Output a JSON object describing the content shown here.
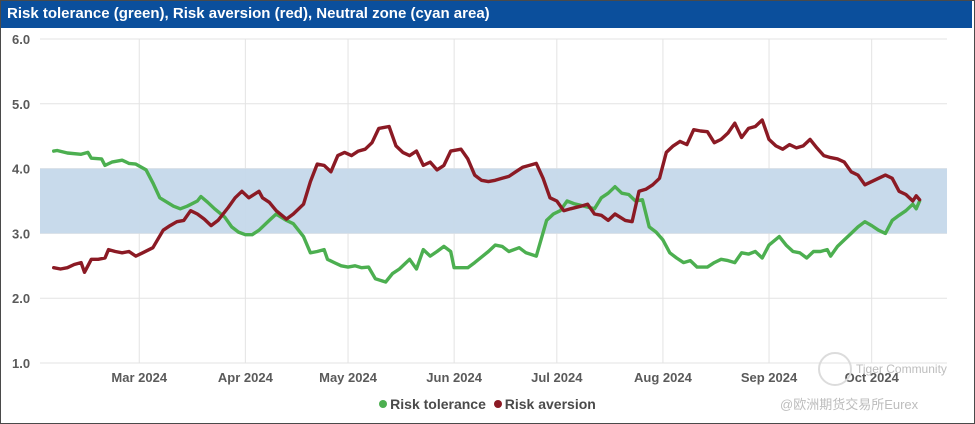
{
  "title": "Risk tolerance (green), Risk aversion (red), Neutral zone (cyan area)",
  "colors": {
    "title_bar": "#0b4f9c",
    "risk_tolerance": "#4caf50",
    "risk_aversion": "#8b1a24",
    "neutral_zone": "#c5d8ea",
    "grid": "#e3e3e3"
  },
  "legend": {
    "tolerance_label": "Risk tolerance",
    "aversion_label": "Risk aversion"
  },
  "watermark": {
    "line1": "Tiger Community",
    "line2": "@欧洲期货交易所Eurex"
  },
  "chart_data": {
    "type": "line",
    "title": "Risk tolerance (green), Risk aversion (red), Neutral zone (cyan area)",
    "xlabel": "",
    "ylabel": "",
    "ylim": [
      1.0,
      6.0
    ],
    "y_ticks": [
      "1.0",
      "2.0",
      "3.0",
      "4.0",
      "5.0",
      "6.0"
    ],
    "x_range": [
      0,
      265
    ],
    "x_ticks": [
      {
        "label": "Mar 2024",
        "x": 29
      },
      {
        "label": "Apr 2024",
        "x": 60
      },
      {
        "label": "May 2024",
        "x": 90
      },
      {
        "label": "Jun 2024",
        "x": 121
      },
      {
        "label": "Jul 2024",
        "x": 151
      },
      {
        "label": "Aug 2024",
        "x": 182
      },
      {
        "label": "Sep 2024",
        "x": 213
      },
      {
        "label": "Oct 2024",
        "x": 243
      }
    ],
    "grid": true,
    "legend_position": "bottom-center",
    "neutral_zone": [
      3.0,
      4.0
    ],
    "series": [
      {
        "name": "Risk tolerance",
        "points": [
          [
            4,
            4.27
          ],
          [
            5,
            4.28
          ],
          [
            8,
            4.24
          ],
          [
            12,
            4.22
          ],
          [
            14,
            4.25
          ],
          [
            15,
            4.16
          ],
          [
            18,
            4.15
          ],
          [
            19,
            4.05
          ],
          [
            21,
            4.1
          ],
          [
            24,
            4.13
          ],
          [
            26,
            4.08
          ],
          [
            28,
            4.07
          ],
          [
            31,
            3.98
          ],
          [
            33,
            3.78
          ],
          [
            35,
            3.55
          ],
          [
            39,
            3.42
          ],
          [
            41,
            3.38
          ],
          [
            43,
            3.42
          ],
          [
            46,
            3.5
          ],
          [
            47,
            3.57
          ],
          [
            49,
            3.48
          ],
          [
            51,
            3.38
          ],
          [
            54,
            3.25
          ],
          [
            56,
            3.1
          ],
          [
            58,
            3.02
          ],
          [
            60,
            2.98
          ],
          [
            62,
            2.98
          ],
          [
            64,
            3.05
          ],
          [
            67,
            3.2
          ],
          [
            69,
            3.3
          ],
          [
            72,
            3.2
          ],
          [
            74,
            3.15
          ],
          [
            77,
            2.95
          ],
          [
            79,
            2.7
          ],
          [
            81,
            2.72
          ],
          [
            83,
            2.75
          ],
          [
            84,
            2.6
          ],
          [
            86,
            2.55
          ],
          [
            88,
            2.5
          ],
          [
            90,
            2.48
          ],
          [
            92,
            2.5
          ],
          [
            94,
            2.47
          ],
          [
            96,
            2.48
          ],
          [
            98,
            2.3
          ],
          [
            101,
            2.25
          ],
          [
            103,
            2.38
          ],
          [
            105,
            2.45
          ],
          [
            108,
            2.6
          ],
          [
            110,
            2.45
          ],
          [
            112,
            2.75
          ],
          [
            114,
            2.65
          ],
          [
            116,
            2.72
          ],
          [
            118,
            2.8
          ],
          [
            120,
            2.72
          ],
          [
            121,
            2.47
          ],
          [
            125,
            2.47
          ],
          [
            127,
            2.55
          ],
          [
            131,
            2.72
          ],
          [
            133,
            2.82
          ],
          [
            135,
            2.8
          ],
          [
            137,
            2.72
          ],
          [
            140,
            2.78
          ],
          [
            142,
            2.7
          ],
          [
            145,
            2.65
          ],
          [
            148,
            3.2
          ],
          [
            150,
            3.3
          ],
          [
            152,
            3.35
          ],
          [
            154,
            3.5
          ],
          [
            156,
            3.46
          ],
          [
            159,
            3.42
          ],
          [
            162,
            3.38
          ],
          [
            164,
            3.55
          ],
          [
            166,
            3.62
          ],
          [
            168,
            3.72
          ],
          [
            170,
            3.62
          ],
          [
            172,
            3.6
          ],
          [
            174,
            3.5
          ],
          [
            176,
            3.52
          ],
          [
            178,
            3.1
          ],
          [
            180,
            3.02
          ],
          [
            182,
            2.9
          ],
          [
            184,
            2.7
          ],
          [
            186,
            2.62
          ],
          [
            188,
            2.55
          ],
          [
            190,
            2.58
          ],
          [
            192,
            2.48
          ],
          [
            195,
            2.48
          ],
          [
            197,
            2.55
          ],
          [
            199,
            2.6
          ],
          [
            201,
            2.58
          ],
          [
            203,
            2.55
          ],
          [
            205,
            2.7
          ],
          [
            207,
            2.68
          ],
          [
            209,
            2.72
          ],
          [
            211,
            2.62
          ],
          [
            213,
            2.82
          ],
          [
            216,
            2.95
          ],
          [
            218,
            2.82
          ],
          [
            220,
            2.72
          ],
          [
            222,
            2.7
          ],
          [
            224,
            2.62
          ],
          [
            226,
            2.72
          ],
          [
            228,
            2.72
          ],
          [
            230,
            2.75
          ],
          [
            231,
            2.65
          ],
          [
            233,
            2.8
          ],
          [
            235,
            2.9
          ],
          [
            237,
            3.0
          ],
          [
            239,
            3.1
          ],
          [
            241,
            3.18
          ],
          [
            243,
            3.12
          ],
          [
            245,
            3.05
          ],
          [
            247,
            3.0
          ],
          [
            249,
            3.2
          ],
          [
            251,
            3.28
          ],
          [
            253,
            3.35
          ],
          [
            255,
            3.45
          ],
          [
            256,
            3.38
          ],
          [
            257,
            3.5
          ]
        ]
      },
      {
        "name": "Risk aversion",
        "points": [
          [
            4,
            2.47
          ],
          [
            6,
            2.45
          ],
          [
            8,
            2.47
          ],
          [
            10,
            2.52
          ],
          [
            12,
            2.55
          ],
          [
            13,
            2.4
          ],
          [
            15,
            2.6
          ],
          [
            17,
            2.6
          ],
          [
            19,
            2.62
          ],
          [
            20,
            2.75
          ],
          [
            22,
            2.72
          ],
          [
            24,
            2.7
          ],
          [
            26,
            2.72
          ],
          [
            28,
            2.65
          ],
          [
            30,
            2.7
          ],
          [
            33,
            2.78
          ],
          [
            36,
            3.05
          ],
          [
            38,
            3.12
          ],
          [
            40,
            3.18
          ],
          [
            42,
            3.2
          ],
          [
            44,
            3.35
          ],
          [
            46,
            3.3
          ],
          [
            48,
            3.22
          ],
          [
            50,
            3.12
          ],
          [
            52,
            3.2
          ],
          [
            55,
            3.4
          ],
          [
            57,
            3.55
          ],
          [
            59,
            3.65
          ],
          [
            61,
            3.55
          ],
          [
            64,
            3.65
          ],
          [
            65,
            3.55
          ],
          [
            67,
            3.48
          ],
          [
            69,
            3.35
          ],
          [
            72,
            3.22
          ],
          [
            74,
            3.3
          ],
          [
            77,
            3.45
          ],
          [
            79,
            3.8
          ],
          [
            81,
            4.07
          ],
          [
            83,
            4.05
          ],
          [
            85,
            3.95
          ],
          [
            87,
            4.2
          ],
          [
            89,
            4.25
          ],
          [
            91,
            4.2
          ],
          [
            93,
            4.27
          ],
          [
            95,
            4.3
          ],
          [
            97,
            4.4
          ],
          [
            99,
            4.62
          ],
          [
            102,
            4.65
          ],
          [
            104,
            4.35
          ],
          [
            106,
            4.25
          ],
          [
            108,
            4.2
          ],
          [
            110,
            4.27
          ],
          [
            112,
            4.05
          ],
          [
            114,
            4.1
          ],
          [
            116,
            3.98
          ],
          [
            118,
            4.05
          ],
          [
            120,
            4.27
          ],
          [
            123,
            4.3
          ],
          [
            125,
            4.15
          ],
          [
            127,
            3.9
          ],
          [
            129,
            3.82
          ],
          [
            131,
            3.8
          ],
          [
            133,
            3.82
          ],
          [
            135,
            3.85
          ],
          [
            137,
            3.88
          ],
          [
            139,
            3.95
          ],
          [
            141,
            4.02
          ],
          [
            143,
            4.05
          ],
          [
            145,
            4.08
          ],
          [
            147,
            3.85
          ],
          [
            149,
            3.55
          ],
          [
            151,
            3.5
          ],
          [
            153,
            3.35
          ],
          [
            155,
            3.38
          ],
          [
            158,
            3.42
          ],
          [
            160,
            3.45
          ],
          [
            162,
            3.3
          ],
          [
            164,
            3.28
          ],
          [
            166,
            3.2
          ],
          [
            168,
            3.3
          ],
          [
            171,
            3.2
          ],
          [
            173,
            3.18
          ],
          [
            175,
            3.65
          ],
          [
            177,
            3.68
          ],
          [
            179,
            3.75
          ],
          [
            181,
            3.85
          ],
          [
            183,
            4.25
          ],
          [
            185,
            4.35
          ],
          [
            187,
            4.42
          ],
          [
            189,
            4.37
          ],
          [
            191,
            4.6
          ],
          [
            193,
            4.58
          ],
          [
            195,
            4.57
          ],
          [
            197,
            4.4
          ],
          [
            199,
            4.45
          ],
          [
            201,
            4.55
          ],
          [
            203,
            4.7
          ],
          [
            205,
            4.48
          ],
          [
            207,
            4.62
          ],
          [
            209,
            4.65
          ],
          [
            211,
            4.75
          ],
          [
            213,
            4.45
          ],
          [
            215,
            4.35
          ],
          [
            217,
            4.3
          ],
          [
            219,
            4.37
          ],
          [
            221,
            4.32
          ],
          [
            223,
            4.35
          ],
          [
            225,
            4.45
          ],
          [
            227,
            4.32
          ],
          [
            229,
            4.2
          ],
          [
            231,
            4.17
          ],
          [
            233,
            4.15
          ],
          [
            235,
            4.1
          ],
          [
            237,
            3.95
          ],
          [
            239,
            3.9
          ],
          [
            241,
            3.75
          ],
          [
            243,
            3.8
          ],
          [
            245,
            3.85
          ],
          [
            247,
            3.9
          ],
          [
            249,
            3.85
          ],
          [
            251,
            3.65
          ],
          [
            253,
            3.6
          ],
          [
            255,
            3.5
          ],
          [
            256,
            3.58
          ],
          [
            257,
            3.52
          ]
        ]
      }
    ]
  }
}
